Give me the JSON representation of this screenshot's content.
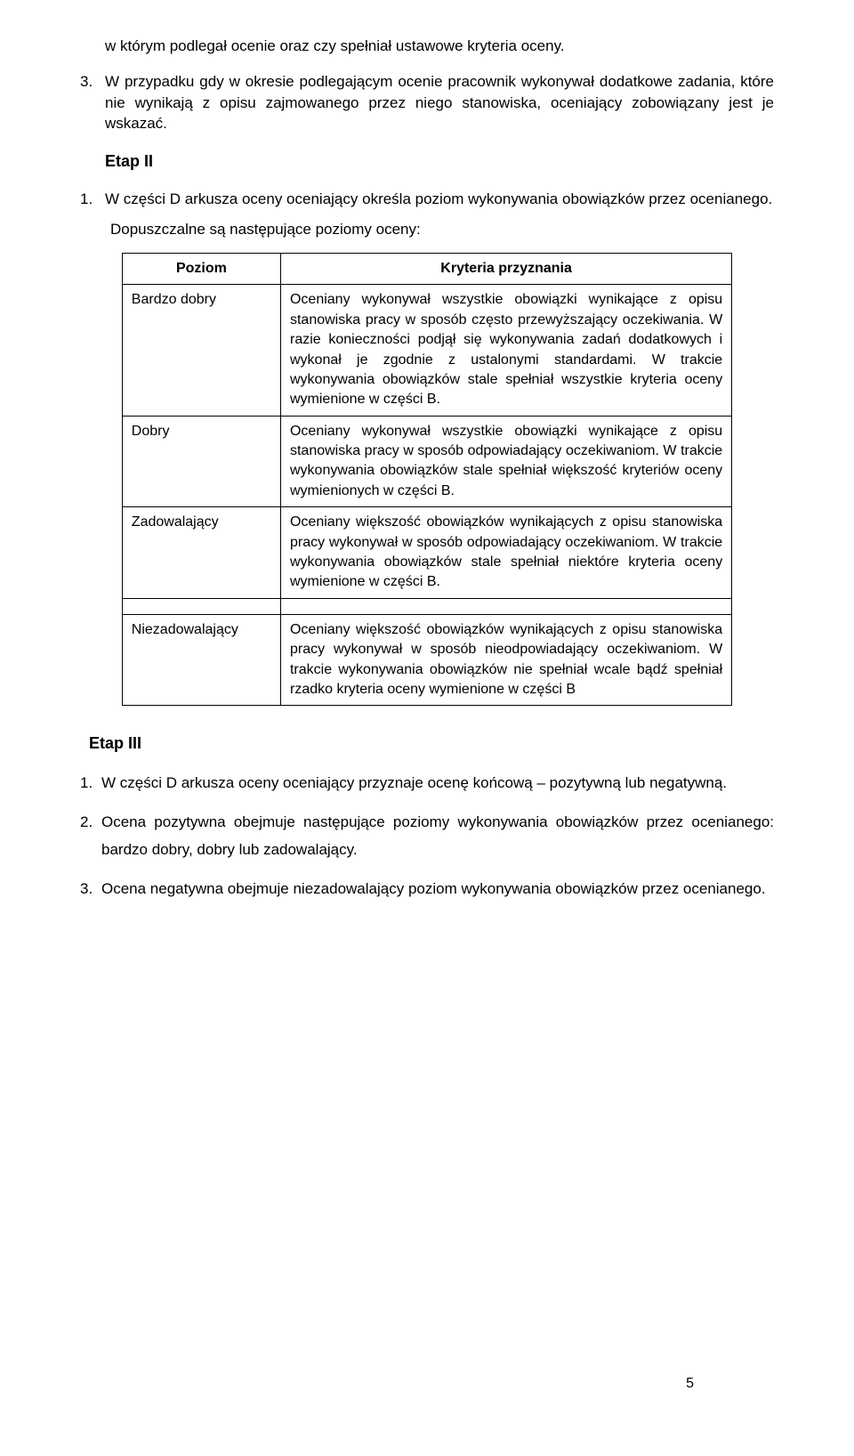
{
  "intro": "w którym podlegał ocenie oraz czy spełniał ustawowe kryteria oceny.",
  "item3_num": "3.",
  "item3": "W przypadku gdy w okresie podlegającym ocenie pracownik wykonywał dodatkowe zadania, które nie wynikają z opisu zajmowanego przez niego stanowiska, oceniający zobowiązany jest je wskazać.",
  "etap2": "Etap II",
  "etap2_item_num": "1.",
  "etap2_item": "W części D arkusza oceny oceniający określa poziom wykonywania obowiązków przez ocenianego.",
  "etap2_sub": "Dopuszczalne są następujące poziomy oceny:",
  "table": {
    "headers": {
      "c1": "Poziom",
      "c2": "Kryteria przyznania"
    },
    "rows": [
      {
        "level": "Bardzo dobry",
        "crit": "Oceniany wykonywał wszystkie obowiązki wynikające z opisu stanowiska pracy w sposób często przewyższający oczekiwania. W razie konieczności podjął się wykonywania zadań dodatkowych i wykonał je zgodnie z ustalonymi standardami. W trakcie wykonywania obowiązków stale spełniał wszystkie kryteria oceny wymienione w części B."
      },
      {
        "level": "Dobry",
        "crit": "Oceniany wykonywał wszystkie obowiązki wynikające z opisu stanowiska pracy w sposób odpowiadający oczekiwaniom. W trakcie wykonywania obowiązków stale spełniał większość kryteriów oceny wymienionych w części B."
      },
      {
        "level": "Zadowalający",
        "crit": "Oceniany większość obowiązków wynikających z opisu stanowiska pracy wykonywał w sposób odpowiadający oczekiwaniom. W trakcie wykonywania obowiązków stale spełniał niektóre kryteria oceny wymienione w części B."
      },
      {
        "level": "Niezadowalający",
        "crit": "Oceniany większość obowiązków wynikających z opisu stanowiska pracy wykonywał w sposób nieodpowiadający oczekiwaniom. W trakcie wykonywania obowiązków nie spełniał wcale bądź spełniał rzadko kryteria oceny wymienione w części B"
      }
    ]
  },
  "etap3": "Etap III",
  "etap3_items": [
    {
      "n": "1.",
      "t": "W części D arkusza oceny oceniający przyznaje ocenę końcową – pozytywną lub negatywną."
    },
    {
      "n": "2.",
      "t": "Ocena pozytywna obejmuje następujące poziomy wykonywania obowiązków przez ocenianego: bardzo dobry, dobry lub zadowalający."
    },
    {
      "n": "3.",
      "t": "Ocena negatywna obejmuje niezadowalający poziom wykonywania obowiązków przez ocenianego."
    }
  ],
  "page": "5"
}
